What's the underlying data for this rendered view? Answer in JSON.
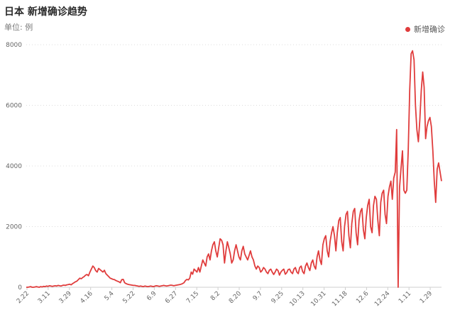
{
  "title": "日本 新增确诊趋势",
  "unit": "单位: 例",
  "legend_label": "新增确诊",
  "colors": {
    "series": "#e03c3c",
    "grid": "#dcdcdc",
    "axis": "#cfcfcf"
  },
  "chart_data": {
    "type": "line",
    "title": "日本 新增确诊趋势",
    "ylabel": "单位: 例",
    "ylim": [
      0,
      8000
    ],
    "yticks": [
      0,
      2000,
      4000,
      6000,
      8000
    ],
    "xtick_labels": [
      "2.22",
      "3.11",
      "3.29",
      "4.16",
      "5.4",
      "5.22",
      "6.9",
      "6.27",
      "7.15",
      "8.2",
      "8.20",
      "9.7",
      "9.25",
      "10.13",
      "10.31",
      "11.18",
      "12.6",
      "12.24",
      "1.11",
      "1.29"
    ],
    "legend_position": "top-right",
    "grid": "horizontal",
    "series": [
      {
        "name": "新增确诊",
        "values": [
          0,
          0,
          10,
          20,
          0,
          0,
          10,
          20,
          10,
          0,
          20,
          10,
          30,
          20,
          40,
          30,
          50,
          40,
          30,
          40,
          50,
          40,
          60,
          50,
          40,
          60,
          70,
          60,
          80,
          90,
          100,
          80,
          120,
          150,
          180,
          200,
          250,
          300,
          280,
          320,
          350,
          400,
          420,
          380,
          500,
          600,
          700,
          650,
          550,
          500,
          620,
          580,
          540,
          500,
          560,
          450,
          400,
          350,
          300,
          280,
          260,
          250,
          220,
          200,
          180,
          150,
          250,
          260,
          150,
          120,
          100,
          90,
          80,
          70,
          60,
          60,
          50,
          40,
          30,
          40,
          30,
          20,
          40,
          30,
          20,
          30,
          40,
          30,
          20,
          40,
          50,
          40,
          30,
          40,
          50,
          60,
          50,
          40,
          50,
          60,
          70,
          60,
          50,
          60,
          70,
          80,
          90,
          100,
          120,
          150,
          220,
          260,
          240,
          300,
          500,
          430,
          600,
          550,
          500,
          650,
          500,
          700,
          900,
          800,
          700,
          1000,
          1100,
          900,
          1200,
          1400,
          1500,
          1200,
          1000,
          1300,
          1600,
          1550,
          1400,
          800,
          1200,
          1500,
          1300,
          1100,
          800,
          900,
          1200,
          1400,
          1200,
          1000,
          900,
          1200,
          1350,
          1100,
          1000,
          900,
          1050,
          1200,
          1000,
          900,
          700,
          600,
          700,
          650,
          500,
          550,
          650,
          600,
          500,
          450,
          560,
          600,
          500,
          420,
          500,
          600,
          550,
          400,
          500,
          560,
          600,
          430,
          480,
          580,
          600,
          500,
          450,
          600,
          650,
          500,
          450,
          650,
          700,
          520,
          450,
          700,
          800,
          650,
          550,
          800,
          900,
          700,
          600,
          1000,
          1200,
          900,
          750,
          1400,
          1600,
          1700,
          1200,
          1000,
          1500,
          1800,
          2000,
          1700,
          1200,
          1800,
          2200,
          2300,
          1500,
          1200,
          2000,
          2400,
          2500,
          1700,
          1300,
          2100,
          2500,
          2600,
          1800,
          1400,
          2200,
          2500,
          2600,
          1900,
          1600,
          2300,
          2700,
          2900,
          2000,
          1800,
          2700,
          3000,
          2900,
          2200,
          1700,
          2800,
          3100,
          3200,
          2400,
          2100,
          3000,
          3300,
          3500,
          2900,
          3600,
          3800,
          5200,
          0,
          3300,
          3900,
          4500,
          3200,
          3100,
          3200,
          4500,
          6500,
          7700,
          7800,
          7500,
          6000,
          5200,
          4800,
          5500,
          6500,
          7100,
          6600,
          4900,
          5300,
          5500,
          5600,
          5300,
          4500,
          3500,
          2800,
          3900,
          4100,
          3800,
          3500
        ]
      }
    ]
  }
}
